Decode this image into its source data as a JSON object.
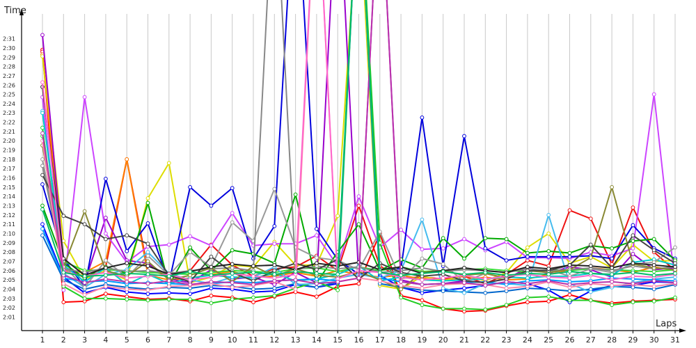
{
  "chart_data": {
    "type": "line",
    "title": "",
    "xlabel": "Laps",
    "ylabel": "Time",
    "x": [
      1,
      2,
      3,
      4,
      5,
      6,
      7,
      8,
      9,
      10,
      11,
      12,
      13,
      14,
      15,
      16,
      17,
      18,
      19,
      20,
      21,
      22,
      23,
      24,
      25,
      26,
      27,
      28,
      29,
      30,
      31
    ],
    "x_ticks": [
      "1",
      "2",
      "3",
      "4",
      "5",
      "6",
      "7",
      "8",
      "9",
      "10",
      "11",
      "12",
      "13",
      "14",
      "15",
      "16",
      "17",
      "18",
      "19",
      "20",
      "21",
      "22",
      "23",
      "24",
      "25",
      "26",
      "27",
      "28",
      "29",
      "30",
      "31"
    ],
    "y_unit": "seconds",
    "y_range": [
      120,
      152
    ],
    "y_ticks": [
      "2:01",
      "2:02",
      "2:03",
      "2:04",
      "2:05",
      "2:06",
      "2:07",
      "2:08",
      "2:09",
      "2:10",
      "2:11",
      "2:12",
      "2:13",
      "2:14",
      "2:15",
      "2:16",
      "2:17",
      "2:18",
      "2:19",
      "2:20",
      "2:21",
      "2:22",
      "2:23",
      "2:24",
      "2:25",
      "2:26",
      "2:27",
      "2:28",
      "2:29",
      "2:30",
      "2:31"
    ],
    "grid": "vertical",
    "legend": "none",
    "series": [
      {
        "color": "#ff0000",
        "values": [
          149.8,
          122.6,
          122.7,
          123.5,
          123.2,
          122.9,
          123.0,
          122.7,
          123.3,
          123.1,
          122.6,
          123.2,
          123.7,
          123.2,
          124.3,
          124.6,
          130.0,
          123.3,
          122.8,
          121.9,
          121.6,
          121.7,
          122.2,
          122.6,
          122.7,
          123.4,
          122.8,
          122.5,
          122.7,
          122.8,
          122.9
        ]
      },
      {
        "color": "#ee1111",
        "values": [
          149.6,
          126.5,
          125.2,
          126.4,
          138.0,
          126.0,
          125.5,
          126.0,
          128.8,
          126.6,
          125.4,
          126.2,
          126.4,
          127.6,
          126.0,
          133.0,
          126.5,
          125.2,
          125.3,
          125.1,
          125.4,
          124.6,
          125.6,
          127.1,
          126.5,
          132.5,
          131.6,
          126.7,
          132.8,
          128.0,
          126.0
        ]
      },
      {
        "color": "#ff7f00",
        "values": [
          149.3,
          126.0,
          125.8,
          127.0,
          138.0,
          125.5,
          125.0,
          125.2,
          125.6,
          125.9,
          125.3,
          125.4,
          125.8,
          125.4,
          126.0,
          125.6,
          125.3,
          125.5,
          125.1,
          125.0,
          125.0,
          125.3,
          125.0,
          125.1,
          125.6,
          126.0,
          126.3,
          126.1,
          125.8,
          126.4,
          126.0
        ]
      },
      {
        "color": "#dddd00",
        "values": [
          149.1,
          129.2,
          125.1,
          126.0,
          125.0,
          133.8,
          137.6,
          124.7,
          125.3,
          126.6,
          126.4,
          129.1,
          126.6,
          126.6,
          131.9,
          167.0,
          124.4,
          124.0,
          125.4,
          124.9,
          125.5,
          124.9,
          125.8,
          128.5,
          130.0,
          126.8,
          127.5,
          126.3,
          128.8,
          127.0,
          127.1
        ]
      },
      {
        "color": "#9900cc",
        "values": [
          151.4,
          127.0,
          124.7,
          131.7,
          127.1,
          126.8,
          125.1,
          124.7,
          126.1,
          125.1,
          125.3,
          124.5,
          125.8,
          124.7,
          170.0,
          125.1,
          170.0,
          125.0,
          124.5,
          124.6,
          124.9,
          124.7,
          125.1,
          126.3,
          125.7,
          126.4,
          126.1,
          125.3,
          127.8,
          126.1,
          126.3
        ]
      },
      {
        "color": "#cc44ff",
        "values": [
          144.7,
          123.9,
          144.7,
          130.0,
          126.9,
          128.6,
          128.8,
          129.7,
          128.7,
          132.2,
          128.7,
          128.9,
          128.9,
          129.8,
          126.5,
          134.0,
          128.5,
          130.4,
          128.3,
          128.4,
          129.4,
          128.2,
          129.1,
          127.4,
          127.4,
          127.3,
          128.0,
          127.6,
          128.4,
          145.0,
          124.5
        ]
      },
      {
        "color": "#0000dd",
        "values": [
          135.3,
          127.3,
          124.2,
          135.9,
          128.1,
          131.1,
          124.7,
          135.0,
          133.0,
          134.9,
          127.3,
          130.8,
          170.0,
          130.5,
          127.2,
          125.6,
          126.1,
          126.2,
          142.5,
          126.5,
          140.5,
          128.4,
          127.1,
          127.5,
          127.5,
          127.5,
          127.6,
          127.3,
          130.9,
          128.4,
          127.3
        ]
      },
      {
        "color": "#0000ff",
        "values": [
          131.0,
          125.3,
          123.6,
          124.2,
          123.7,
          123.5,
          123.6,
          123.5,
          124.1,
          124.0,
          123.7,
          123.8,
          124.5,
          124.2,
          124.6,
          170.0,
          125.5,
          124.2,
          123.6,
          123.9,
          124.1,
          124.4,
          124.8,
          124.6,
          123.9,
          122.6,
          123.8,
          124.4,
          124.4,
          124.8,
          124.7
        ]
      },
      {
        "color": "#0066cc",
        "values": [
          129.8,
          125.0,
          124.0,
          124.5,
          124.2,
          124.0,
          124.2,
          124.1,
          124.4,
          124.3,
          124.0,
          124.1,
          124.6,
          124.2,
          124.8,
          170.0,
          124.6,
          124.2,
          123.9,
          123.8,
          123.7,
          123.6,
          123.8,
          124.1,
          124.0,
          123.8,
          124.0,
          124.3,
          124.2,
          124.0,
          124.5
        ]
      },
      {
        "color": "#00aa00",
        "values": [
          133.0,
          126.8,
          125.2,
          126.4,
          125.7,
          133.3,
          124.4,
          128.5,
          126.0,
          128.2,
          127.8,
          126.8,
          134.2,
          124.7,
          128.0,
          131.0,
          126.0,
          127.2,
          126.3,
          129.5,
          127.3,
          129.5,
          129.4,
          127.9,
          128.1,
          127.9,
          128.7,
          128.4,
          129.2,
          129.4,
          127.1
        ]
      },
      {
        "color": "#22cc22",
        "values": [
          141.4,
          124.3,
          123.0,
          123.0,
          122.9,
          122.8,
          122.9,
          122.9,
          122.5,
          122.9,
          123.1,
          123.3,
          124.1,
          124.8,
          123.9,
          170.0,
          129.0,
          123.1,
          122.3,
          121.9,
          121.9,
          121.8,
          122.3,
          123.1,
          123.2,
          122.8,
          122.8,
          122.3,
          122.6,
          122.7,
          123.1
        ]
      },
      {
        "color": "#33dd33",
        "values": [
          140.5,
          127.0,
          126.0,
          126.1,
          126.0,
          125.8,
          125.7,
          125.6,
          125.8,
          126.0,
          125.9,
          125.8,
          126.2,
          126.3,
          125.9,
          126.4,
          126.0,
          126.4,
          125.9,
          126.0,
          126.1,
          126.2,
          126.0,
          125.9,
          126.1,
          126.0,
          126.2,
          126.1,
          126.0,
          125.9,
          126.1
        ]
      },
      {
        "color": "#44bbee",
        "values": [
          143.2,
          125.7,
          124.2,
          125.6,
          126.1,
          128.0,
          125.7,
          125.0,
          124.6,
          125.3,
          125.3,
          126.4,
          124.5,
          124.6,
          125.2,
          125.6,
          125.2,
          126.0,
          131.5,
          124.1,
          123.6,
          124.6,
          124.6,
          124.4,
          132.0,
          124.6,
          123.7,
          124.2,
          124.7,
          125.1,
          125.3
        ]
      },
      {
        "color": "#00cccc",
        "values": [
          143.0,
          126.6,
          124.8,
          126.3,
          124.5,
          125.6,
          124.6,
          125.2,
          125.5,
          125.3,
          125.2,
          125.7,
          124.9,
          125.1,
          125.6,
          126.5,
          124.9,
          125.3,
          125.0,
          124.9,
          125.0,
          125.1,
          125.3,
          125.2,
          125.4,
          125.4,
          125.7,
          125.5,
          126.9,
          127.2,
          126.6
        ]
      },
      {
        "color": "#0099ff",
        "values": [
          130.5,
          125.2,
          124.8,
          124.9,
          124.6,
          124.7,
          124.6,
          124.5,
          124.6,
          124.8,
          124.7,
          124.9,
          125.0,
          125.1,
          124.9,
          170.0,
          125.2,
          124.8,
          124.5,
          124.6,
          124.7,
          124.8,
          124.5,
          124.9,
          125.0,
          124.8,
          124.9,
          125.2,
          125.1,
          125.0,
          124.9
        ]
      },
      {
        "color": "#999999",
        "values": [
          138.0,
          126.5,
          124.2,
          127.1,
          125.3,
          127.6,
          125.5,
          128.0,
          126.4,
          131.2,
          129.2,
          134.8,
          128.5,
          127.4,
          127.1,
          126.1,
          130.2,
          125.0,
          127.3,
          126.7,
          124.8,
          125.7,
          125.2,
          125.9,
          126.1,
          125.4,
          126.2,
          125.8,
          126.7,
          126.9,
          128.5
        ]
      },
      {
        "color": "#888888",
        "values": [
          137.3,
          126.2,
          125.8,
          126.3,
          125.9,
          126.0,
          125.7,
          126.0,
          126.2,
          126.3,
          126.0,
          170.0,
          126.1,
          126.5,
          126.2,
          126.4,
          125.8,
          126.0,
          126.3,
          125.9,
          126.1,
          126.0,
          125.8,
          126.2,
          126.0,
          126.1,
          126.3,
          126.0,
          126.5,
          126.2,
          126.4
        ]
      },
      {
        "color": "#888833",
        "values": [
          139.5,
          126.4,
          132.4,
          126.0,
          125.4,
          127.0,
          125.0,
          125.5,
          126.3,
          124.8,
          126.5,
          125.4,
          126.2,
          125.5,
          125.3,
          125.9,
          125.0,
          124.0,
          125.8,
          126.0,
          125.5,
          125.7,
          125.2,
          126.0,
          125.8,
          126.1,
          127.4,
          135.0,
          126.7,
          126.3,
          126.1
        ]
      },
      {
        "color": "#444444",
        "values": [
          136.3,
          131.9,
          131.0,
          129.4,
          129.8,
          128.9,
          125.5,
          124.8,
          127.5,
          125.8,
          124.9,
          126.0,
          126.8,
          126.1,
          127.2,
          125.1,
          126.8,
          125.8,
          125.4,
          125.6,
          124.9,
          124.7,
          125.1,
          126.0,
          126.0,
          126.6,
          128.8,
          126.3,
          129.8,
          128.2,
          126.8
        ]
      },
      {
        "color": "#222222",
        "values": [
          145.8,
          127.3,
          125.5,
          126.3,
          126.8,
          126.5,
          125.6,
          125.9,
          126.4,
          126.7,
          126.5,
          126.6,
          126.1,
          126.8,
          126.5,
          126.9,
          126.1,
          126.4,
          125.7,
          126.0,
          126.3,
          126.0,
          125.8,
          126.4,
          126.2,
          126.6,
          126.5,
          126.3,
          126.8,
          126.6,
          126.4
        ]
      },
      {
        "color": "#ff88aa",
        "values": [
          140.0,
          124.6,
          123.4,
          124.3,
          124.0,
          123.9,
          124.3,
          124.4,
          124.6,
          124.2,
          124.4,
          124.8,
          124.0,
          170.0,
          124.8,
          125.2,
          124.9,
          124.4,
          124.1,
          124.5,
          124.6,
          124.5,
          124.1,
          124.3,
          124.8,
          124.2,
          124.6,
          124.4,
          124.5,
          124.3,
          124.6
        ]
      },
      {
        "color": "#ff66cc",
        "values": [
          146.3,
          125.9,
          125.4,
          125.8,
          125.2,
          125.4,
          125.6,
          125.0,
          125.3,
          125.7,
          125.4,
          125.2,
          125.6,
          170.0,
          125.1,
          126.0,
          125.8,
          125.3,
          125.0,
          125.2,
          125.5,
          125.1,
          125.4,
          125.6,
          125.3,
          125.2,
          125.5,
          125.0,
          125.4,
          125.3,
          125.6
        ]
      },
      {
        "color": "#bb33aa",
        "values": [
          140.8,
          125.5,
          124.7,
          125.1,
          124.8,
          124.6,
          124.9,
          124.5,
          124.8,
          124.7,
          124.5,
          124.9,
          125.0,
          124.6,
          124.8,
          125.2,
          170.0,
          124.8,
          124.5,
          124.6,
          124.7,
          124.4,
          124.8,
          124.6,
          124.9,
          124.5,
          124.7,
          124.8,
          124.6,
          124.9,
          124.7
        ]
      },
      {
        "color": "#00bb66",
        "values": [
          132.6,
          125.8,
          125.4,
          125.5,
          125.7,
          125.6,
          125.4,
          125.9,
          125.5,
          125.7,
          125.8,
          125.6,
          125.9,
          125.7,
          125.6,
          170.0,
          125.8,
          125.5,
          125.7,
          125.9,
          125.6,
          125.8,
          125.5,
          125.7,
          125.6,
          125.9,
          125.7,
          125.6,
          125.8,
          125.5,
          125.7
        ]
      }
    ]
  }
}
